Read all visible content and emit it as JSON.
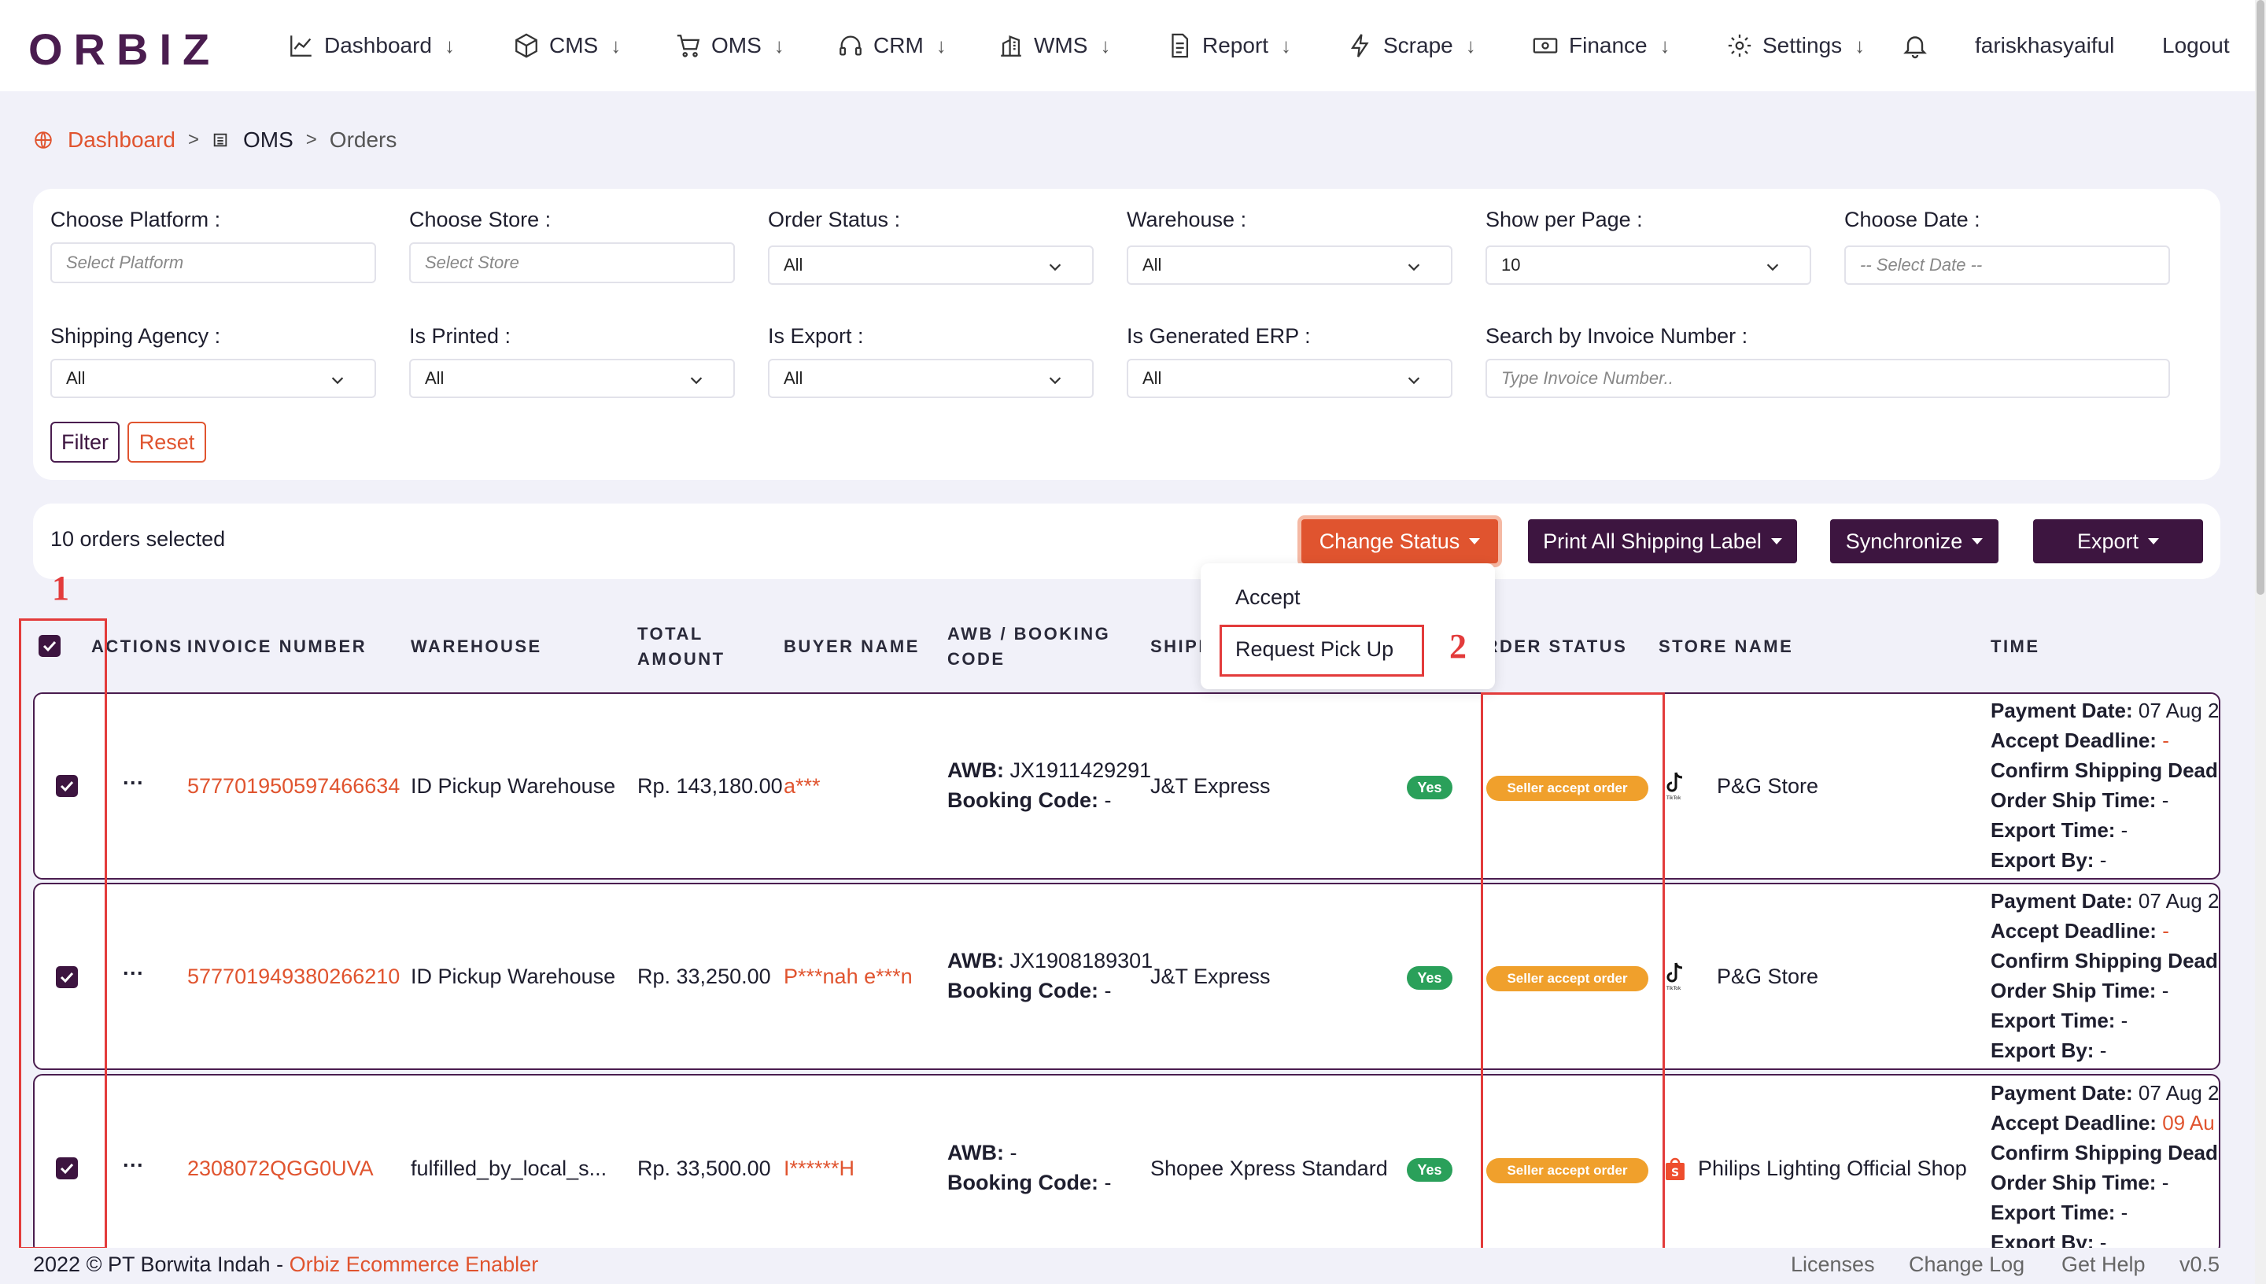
{
  "brand": {
    "logo_text": "ORBIZ"
  },
  "nav": {
    "items": [
      {
        "label": "Dashboard",
        "icon": "chart-line-icon"
      },
      {
        "label": "CMS",
        "icon": "box-icon"
      },
      {
        "label": "OMS",
        "icon": "cart-icon"
      },
      {
        "label": "CRM",
        "icon": "headset-icon"
      },
      {
        "label": "WMS",
        "icon": "building-icon"
      },
      {
        "label": "Report",
        "icon": "document-icon"
      },
      {
        "label": "Scrape",
        "icon": "bolt-icon"
      },
      {
        "label": "Finance",
        "icon": "cash-icon"
      },
      {
        "label": "Settings",
        "icon": "gear-icon"
      }
    ],
    "arrow": "↓",
    "username": "fariskhasyaiful",
    "logout": "Logout"
  },
  "breadcrumb": {
    "home": "Dashboard",
    "section": "OMS",
    "current": "Orders",
    "sep": ">"
  },
  "filters": {
    "platform": {
      "label": "Choose Platform :",
      "placeholder": "Select Platform"
    },
    "store": {
      "label": "Choose Store :",
      "placeholder": "Select Store"
    },
    "order_status": {
      "label": "Order Status :",
      "value": "All"
    },
    "warehouse": {
      "label": "Warehouse :",
      "value": "All"
    },
    "per_page": {
      "label": "Show per Page :",
      "value": "10"
    },
    "date": {
      "label": "Choose Date :",
      "placeholder": "-- Select Date --"
    },
    "shipping_agency": {
      "label": "Shipping Agency :",
      "value": "All"
    },
    "is_printed": {
      "label": "Is Printed :",
      "value": "All"
    },
    "is_export": {
      "label": "Is Export :",
      "value": "All"
    },
    "is_generated_erp": {
      "label": "Is Generated ERP :",
      "value": "All"
    },
    "invoice_search": {
      "label": "Search by Invoice Number :",
      "placeholder": "Type Invoice Number.."
    },
    "filter_btn": "Filter",
    "reset_btn": "Reset"
  },
  "actions": {
    "selected_text": "10 orders selected",
    "change_status": "Change Status",
    "print_label": "Print All Shipping Label",
    "synchronize": "Synchronize",
    "export": "Export",
    "status_menu": {
      "accept": "Accept",
      "request_pickup": "Request Pick Up"
    }
  },
  "table": {
    "headers": {
      "actions": "ACTIONS",
      "invoice": "INVOICE NUMBER",
      "warehouse": "WAREHOUSE",
      "total_l1": "TOTAL",
      "total_l2": "AMOUNT",
      "buyer": "BUYER NAME",
      "awb_l1": "AWB / BOOKING",
      "awb_l2": "CODE",
      "shipping": "SHIPP",
      "order_status": "ORDER STATUS",
      "store": "STORE NAME",
      "time": "TIME"
    },
    "rows": [
      {
        "invoice": "577701950597466634",
        "warehouse": "ID Pickup Warehouse",
        "total": "Rp. 143,180.00",
        "buyer": "a***",
        "awb_label": "AWB:",
        "awb": "JX1911429291",
        "booking_label": "Booking Code:",
        "booking": "-",
        "shipping": "J&T Express",
        "yes": "Yes",
        "status": "Seller accept order",
        "store_icon": "tiktok-icon",
        "store": "P&G Store",
        "time": {
          "payment_label": "Payment Date:",
          "payment": "07 Aug 2",
          "accept_label": "Accept Deadline:",
          "accept": "-",
          "confirm_label": "Confirm Shipping Dead",
          "ship_label": "Order Ship Time:",
          "ship": "-",
          "export_time_label": "Export Time:",
          "export_time": "-",
          "export_by_label": "Export By:",
          "export_by": "-"
        }
      },
      {
        "invoice": "577701949380266210",
        "warehouse": "ID Pickup Warehouse",
        "total": "Rp. 33,250.00",
        "buyer": "P***nah e***n",
        "awb_label": "AWB:",
        "awb": "JX1908189301",
        "booking_label": "Booking Code:",
        "booking": "-",
        "shipping": "J&T Express",
        "yes": "Yes",
        "status": "Seller accept order",
        "store_icon": "tiktok-icon",
        "store": "P&G Store",
        "time": {
          "payment_label": "Payment Date:",
          "payment": "07 Aug 2",
          "accept_label": "Accept Deadline:",
          "accept": "-",
          "confirm_label": "Confirm Shipping Dead",
          "ship_label": "Order Ship Time:",
          "ship": "-",
          "export_time_label": "Export Time:",
          "export_time": "-",
          "export_by_label": "Export By:",
          "export_by": "-"
        }
      },
      {
        "invoice": "2308072QGG0UVA",
        "warehouse": "fulfilled_by_local_s...",
        "total": "Rp. 33,500.00",
        "buyer": "I******H",
        "awb_label": "AWB:",
        "awb": "-",
        "booking_label": "Booking Code:",
        "booking": "-",
        "shipping": "Shopee Xpress Standard",
        "yes": "Yes",
        "status": "Seller accept order",
        "store_icon": "shopee-bag-icon",
        "store": "Philips Lighting Official Shop",
        "time": {
          "payment_label": "Payment Date:",
          "payment": "07 Aug 2",
          "accept_label": "Accept Deadline:",
          "accept": "09 Au",
          "confirm_label": "Confirm Shipping Dead",
          "ship_label": "Order Ship Time:",
          "ship": "-",
          "export_time_label": "Export Time:",
          "export_time": "-",
          "export_by_label": "Export By:",
          "export_by": "-"
        }
      }
    ],
    "row_menu": "···"
  },
  "annotations": {
    "one": "1",
    "two": "2"
  },
  "footer": {
    "copyright": "2022 © PT Borwita Indah - ",
    "link": "Orbiz Ecommerce Enabler",
    "licenses": "Licenses",
    "changelog": "Change Log",
    "help": "Get Help",
    "version": "v0.5"
  },
  "colors": {
    "brand": "#3d1540",
    "accent": "#e0542f",
    "status_orange": "#f0a02c",
    "yes_green": "#2aa05a",
    "annotation_red": "#e33b3b"
  }
}
